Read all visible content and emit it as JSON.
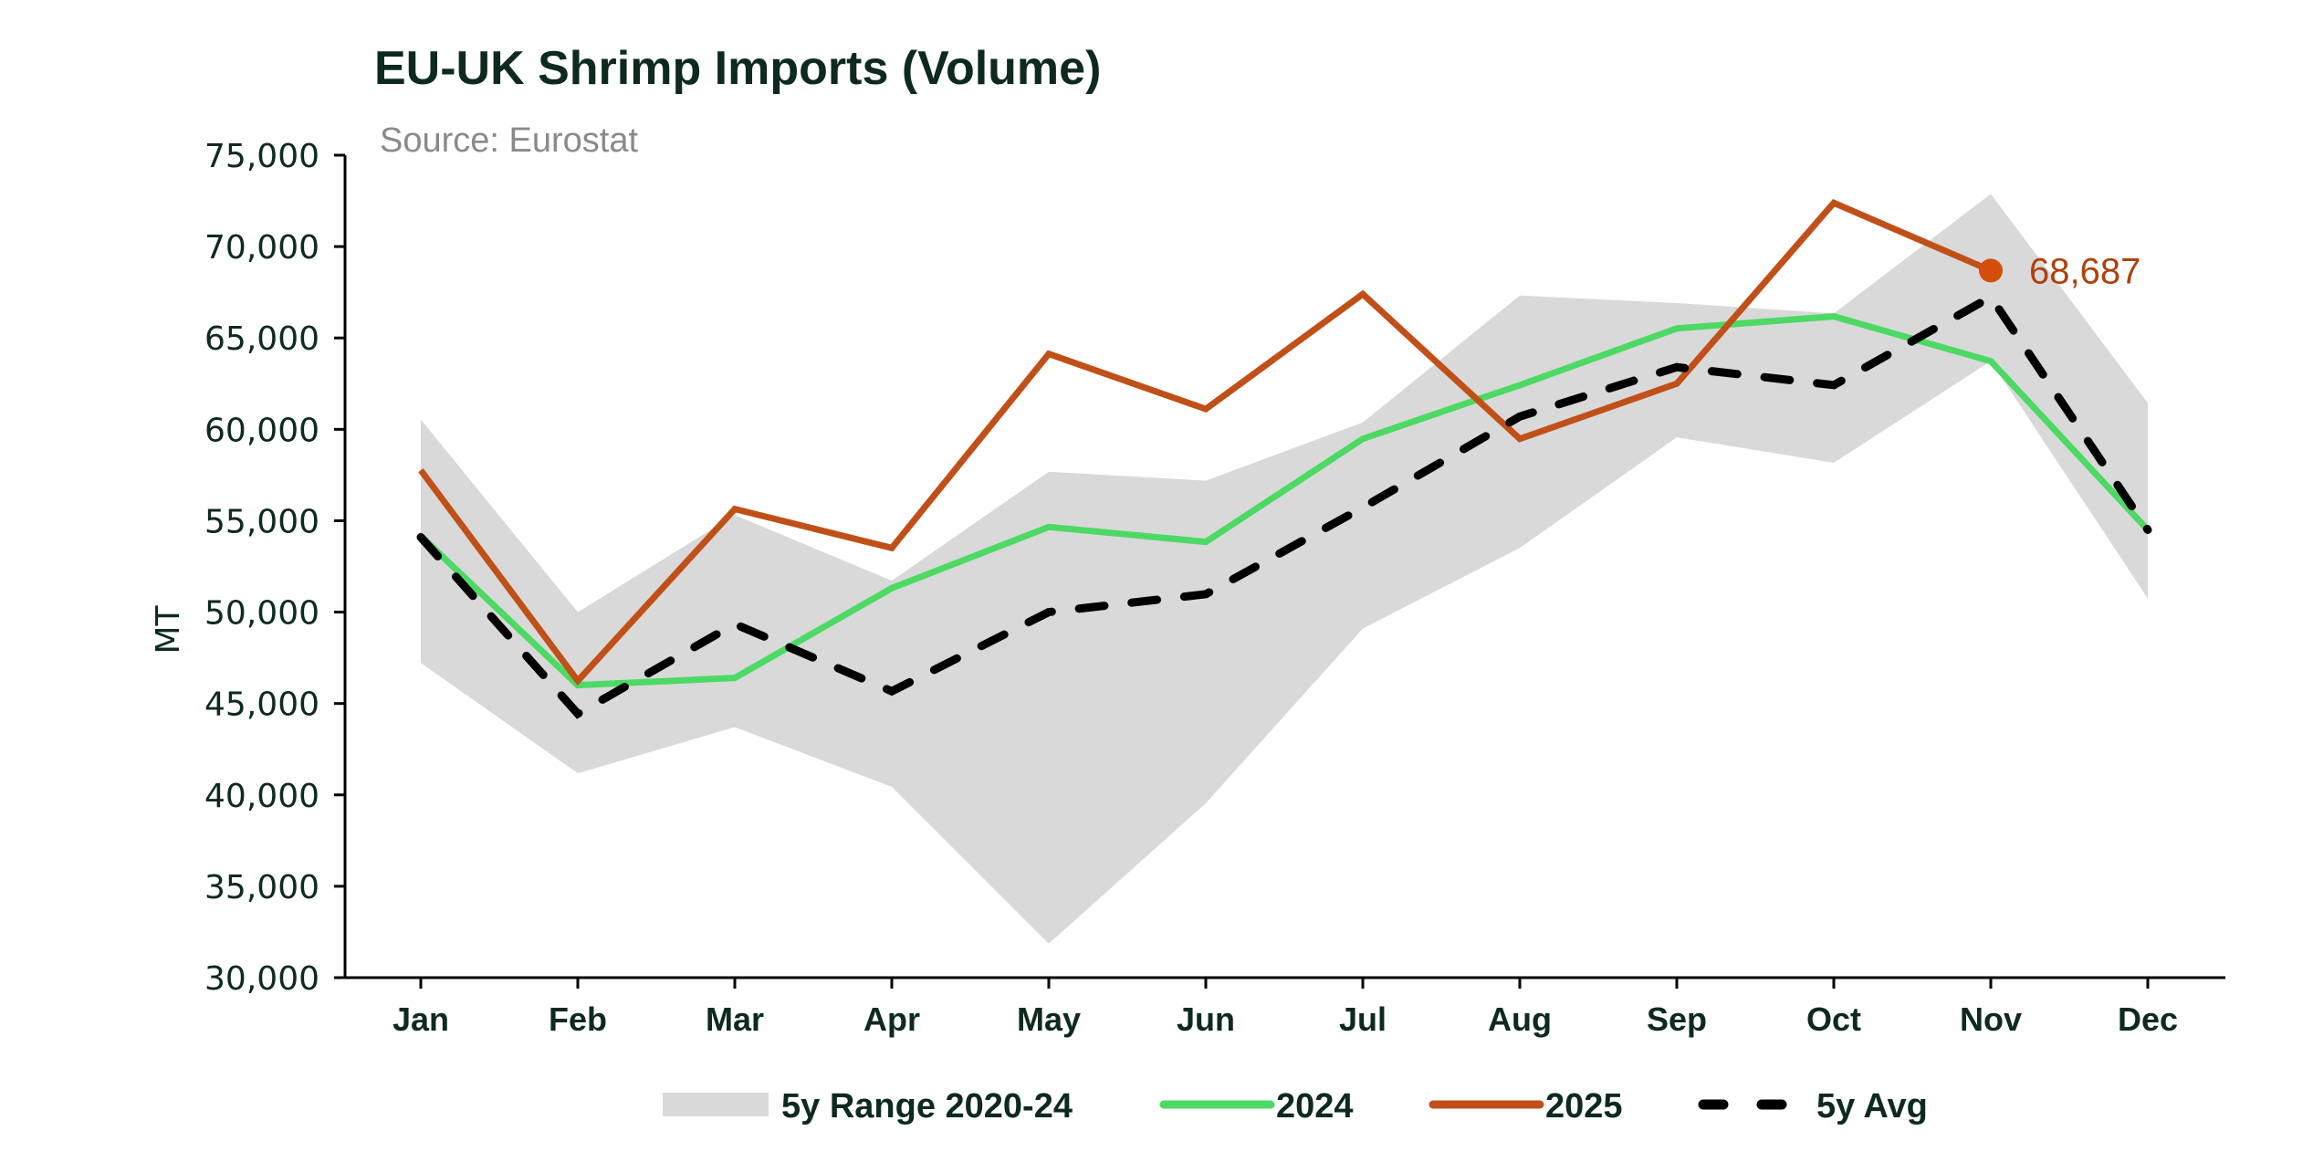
{
  "chart_data": {
    "type": "line",
    "title": "EU-UK Shrimp Imports (Volume)",
    "subtitle": "Source: Eurostat",
    "xlabel": "",
    "ylabel": "MT",
    "ylim": [
      30000,
      75000
    ],
    "yticks": [
      30000,
      35000,
      40000,
      45000,
      50000,
      55000,
      60000,
      65000,
      70000,
      75000
    ],
    "ytick_labels": [
      "30,000",
      "35,000",
      "40,000",
      "45,000",
      "50,000",
      "55,000",
      "60,000",
      "65,000",
      "70,000",
      "75,000"
    ],
    "categories": [
      "Jan",
      "Feb",
      "Mar",
      "Apr",
      "May",
      "Jun",
      "Jul",
      "Aug",
      "Sep",
      "Oct",
      "Nov",
      "Dec"
    ],
    "grid": false,
    "legend_position": "bottom",
    "range": {
      "name": "5y Range 2020-24",
      "color": "#d9d9d9",
      "upper": [
        60540,
        50000,
        55310,
        51720,
        57680,
        57190,
        60380,
        67320,
        66910,
        66340,
        72880,
        61440
      ],
      "lower": [
        47220,
        41180,
        43710,
        40440,
        31860,
        39540,
        49100,
        53510,
        59560,
        58170,
        63730,
        50740
      ]
    },
    "series": [
      {
        "name": "2024",
        "color": "#4cd964",
        "style": "solid",
        "values": [
          54170,
          46000,
          46400,
          51310,
          54660,
          53840,
          59480,
          62420,
          65520,
          66180,
          63730,
          54500
        ]
      },
      {
        "name": "2025",
        "color": "#c05018",
        "style": "solid",
        "values": [
          57760,
          46240,
          55640,
          53510,
          64130,
          61110,
          67400,
          59480,
          62500,
          72390,
          68687,
          null
        ]
      },
      {
        "name": "5y Avg",
        "color": "#000000",
        "style": "dashed",
        "values": [
          54100,
          44440,
          49350,
          45670,
          50000,
          50980,
          55720,
          60700,
          63400,
          62420,
          67240,
          54500
        ]
      }
    ],
    "annotations": [
      {
        "series": "2025",
        "category": "Nov",
        "value": 68687,
        "label": "68,687",
        "marker_color": "#d44d0a",
        "text_color": "#b0400e"
      }
    ]
  }
}
